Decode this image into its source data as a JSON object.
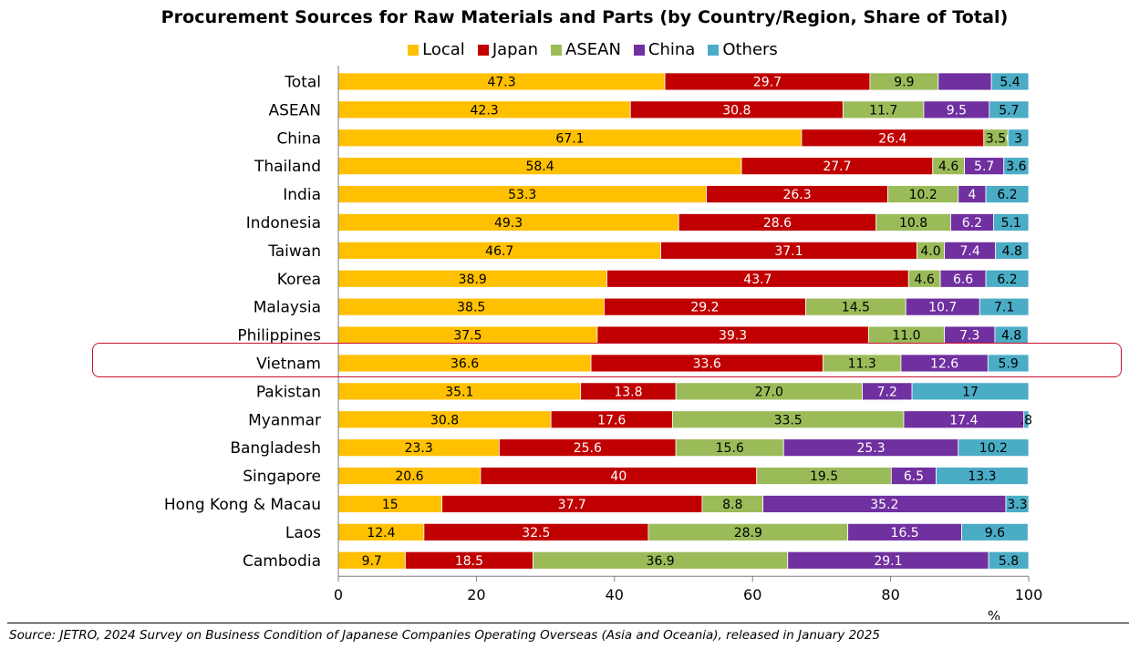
{
  "chart_data": {
    "type": "bar",
    "orientation": "horizontal",
    "stacked": true,
    "title": "Procurement Sources for Raw Materials and Parts (by Country/Region, Share of Total)",
    "categories": [
      "Total",
      "ASEAN",
      "China",
      "Thailand",
      "India",
      "Indonesia",
      "Taiwan",
      "Korea",
      "Malaysia",
      "Philippines",
      "Vietnam",
      "Pakistan",
      "Myanmar",
      "Bangladesh",
      "Singapore",
      "Hong Kong & Macau",
      "Laos",
      "Cambodia"
    ],
    "series": [
      {
        "name": "Local",
        "color": "#ffc000",
        "values": [
          47.3,
          42.3,
          67.1,
          58.4,
          53.3,
          49.3,
          46.7,
          38.9,
          38.5,
          37.5,
          36.6,
          35.1,
          30.8,
          23.3,
          20.6,
          15,
          12.4,
          9.7
        ],
        "labels": [
          "47.3",
          "42.3",
          "67.1",
          "58.4",
          "53.3",
          "49.3",
          "46.7",
          "38.9",
          "38.5",
          "37.5",
          "36.6",
          "35.1",
          "30.8",
          "23.3",
          "20.6",
          "15",
          "12.4",
          "9.7"
        ]
      },
      {
        "name": "Japan",
        "color": "#c00000",
        "values": [
          29.7,
          30.8,
          26.4,
          27.7,
          26.3,
          28.6,
          37.1,
          43.7,
          29.2,
          39.3,
          33.6,
          13.8,
          17.6,
          25.6,
          40,
          37.7,
          32.5,
          18.5
        ],
        "labels": [
          "29.7",
          "30.8",
          "26.4",
          "27.7",
          "26.3",
          "28.6",
          "37.1",
          "43.7",
          "29.2",
          "39.3",
          "33.6",
          "13.8",
          "17.6",
          "25.6",
          "40",
          "37.7",
          "32.5",
          "18.5"
        ]
      },
      {
        "name": "ASEAN",
        "color": "#9bbb59",
        "values": [
          9.9,
          11.7,
          3.5,
          4.6,
          10.2,
          10.8,
          4.0,
          4.6,
          14.5,
          11.0,
          11.3,
          27.0,
          33.5,
          15.6,
          19.5,
          8.8,
          28.9,
          36.9
        ],
        "labels": [
          "9.9",
          "11.7",
          "3.5",
          "4.6",
          "10.2",
          "10.8",
          "4.0",
          "4.6",
          "14.5",
          "11.0",
          "11.3",
          "27.0",
          "33.5",
          "15.6",
          "19.5",
          "8.8",
          "28.9",
          "36.9"
        ]
      },
      {
        "name": "China",
        "color": "#7030a0",
        "values": [
          7.7,
          9.5,
          0,
          5.7,
          4,
          6.2,
          7.4,
          6.6,
          10.7,
          7.3,
          12.6,
          7.2,
          17.4,
          25.3,
          6.5,
          35.2,
          16.5,
          29.1
        ],
        "labels": [
          "",
          "9.5",
          "0",
          "5.7",
          "4",
          "6.2",
          "7.4",
          "6.6",
          "10.7",
          "7.3",
          "12.6",
          "7.2",
          "17.4",
          "25.3",
          "6.5",
          "35.2",
          "16.5",
          "29.1"
        ]
      },
      {
        "name": "Others",
        "color": "#4bacc6",
        "values": [
          5.4,
          5.7,
          3,
          3.6,
          6.2,
          5.1,
          4.8,
          6.2,
          7.1,
          4.8,
          5.9,
          17,
          0.8,
          10.2,
          13.3,
          3.3,
          9.6,
          5.8
        ],
        "labels": [
          "5.4",
          "5.7",
          "3",
          "3.6",
          "6.2",
          "5.1",
          "4.8",
          "6.2",
          "7.1",
          "4.8",
          "5.9",
          "17",
          ".8",
          "10.2",
          "13.3",
          "3.3",
          "9.6",
          "5.8"
        ]
      }
    ],
    "xlim": [
      0,
      100
    ],
    "xticks": [
      "0",
      "20",
      "40",
      "60",
      "80",
      "100"
    ],
    "x_unit": "%",
    "highlighted_category": "Vietnam",
    "legend_placement": "top",
    "grid": false
  },
  "source": "Source: JETRO, 2024 Survey on Business Condition of Japanese Companies Operating Overseas (Asia and Oceania), released in January 2025"
}
